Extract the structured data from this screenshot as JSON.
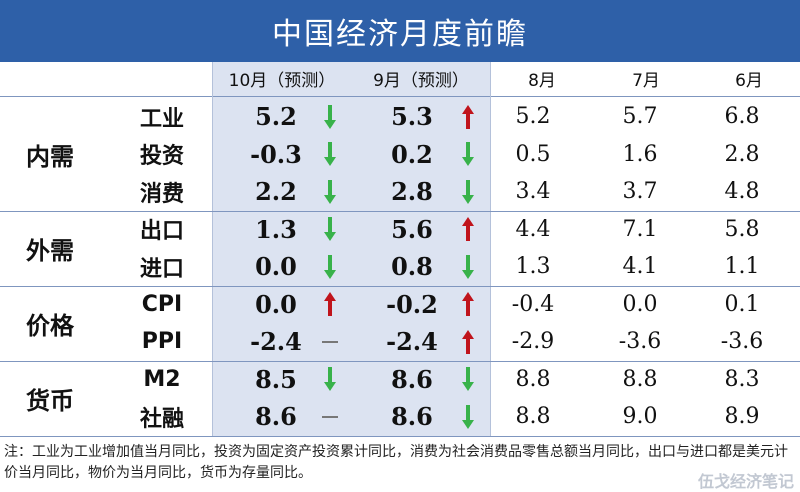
{
  "title": "中国经济月度前瞻",
  "chart_data": {
    "type": "table",
    "columns": [
      "10月（预测）",
      "9月（预测）",
      "8月",
      "7月",
      "6月"
    ],
    "groups": [
      {
        "name": "内需",
        "rows": [
          {
            "indicator": "工业",
            "values": [
              "5.2",
              "5.3",
              "5.2",
              "5.7",
              "6.8"
            ],
            "arrows": [
              "down",
              "up"
            ]
          },
          {
            "indicator": "投资",
            "values": [
              "-0.3",
              "0.2",
              "0.5",
              "1.6",
              "2.8"
            ],
            "arrows": [
              "down",
              "down"
            ]
          },
          {
            "indicator": "消费",
            "values": [
              "2.2",
              "2.8",
              "3.4",
              "3.7",
              "4.8"
            ],
            "arrows": [
              "down",
              "down"
            ]
          }
        ]
      },
      {
        "name": "外需",
        "rows": [
          {
            "indicator": "出口",
            "values": [
              "1.3",
              "5.6",
              "4.4",
              "7.1",
              "5.8"
            ],
            "arrows": [
              "down",
              "up"
            ]
          },
          {
            "indicator": "进口",
            "values": [
              "0.0",
              "0.8",
              "1.3",
              "4.1",
              "1.1"
            ],
            "arrows": [
              "down",
              "down"
            ]
          }
        ]
      },
      {
        "name": "价格",
        "rows": [
          {
            "indicator": "CPI",
            "values": [
              "0.0",
              "-0.2",
              "-0.4",
              "0.0",
              "0.1"
            ],
            "arrows": [
              "up",
              "up"
            ]
          },
          {
            "indicator": "PPI",
            "values": [
              "-2.4",
              "-2.4",
              "-2.9",
              "-3.6",
              "-3.6"
            ],
            "arrows": [
              "flat",
              "up"
            ]
          }
        ]
      },
      {
        "name": "货币",
        "rows": [
          {
            "indicator": "M2",
            "values": [
              "8.5",
              "8.6",
              "8.8",
              "8.8",
              "8.3"
            ],
            "arrows": [
              "down",
              "down"
            ]
          },
          {
            "indicator": "社融",
            "values": [
              "8.6",
              "8.6",
              "8.8",
              "9.0",
              "8.9"
            ],
            "arrows": [
              "flat",
              "down"
            ]
          }
        ]
      }
    ]
  },
  "note": "注：工业为工业增加值当月同比，投资为固定资产投资累计同比，消费为社会消费品零售总额当月同比，出口与进口都是美元计价当月同比，物价为当月同比，货币为存量同比。",
  "watermark": "伍戈经济笔记",
  "colors": {
    "header": "#2e60a8",
    "forecast_bg": "#dce3f1",
    "arrow_up": "#c0141c",
    "arrow_down": "#38b24a",
    "flat": "#777777"
  }
}
